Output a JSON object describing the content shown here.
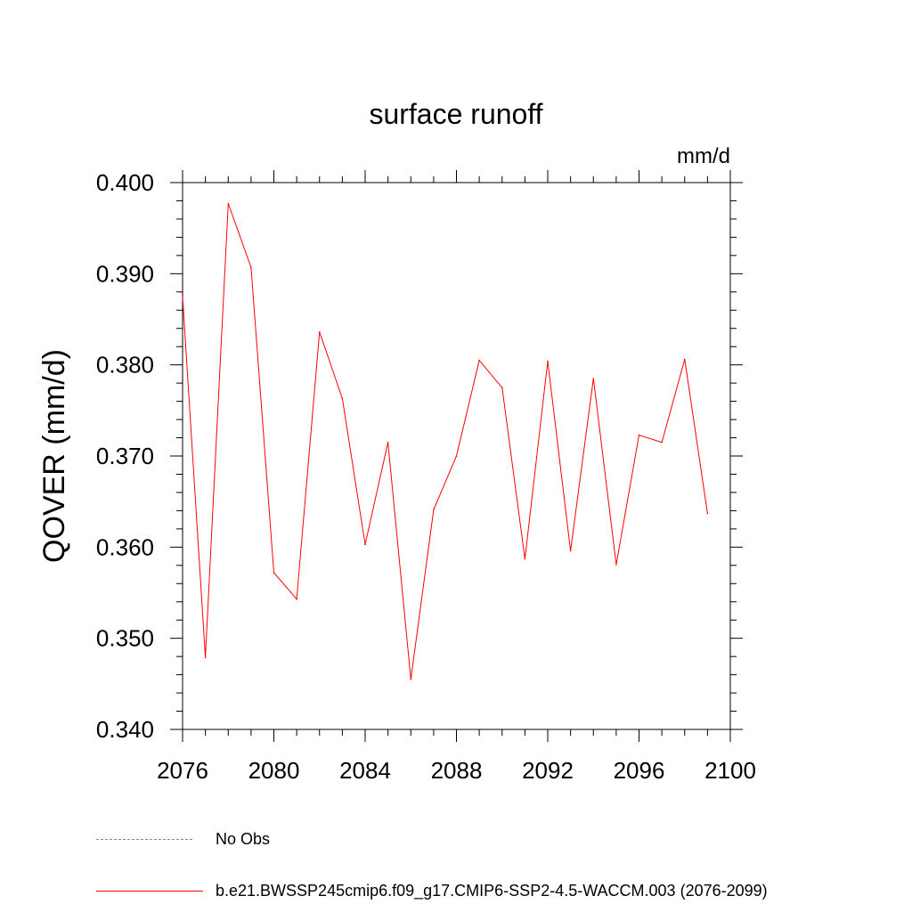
{
  "chart_data": {
    "type": "line",
    "title": "surface runoff",
    "units_label": "mm/d",
    "ylabel": "QOVER  (mm/d)",
    "xlabel": "",
    "xlim": [
      2076,
      2100
    ],
    "ylim": [
      0.34,
      0.4
    ],
    "x_ticks": [
      2076,
      2080,
      2084,
      2088,
      2092,
      2096,
      2100
    ],
    "x_tick_labels": [
      "2076",
      "2080",
      "2084",
      "2088",
      "2092",
      "2096",
      "2100"
    ],
    "y_ticks": [
      0.34,
      0.35,
      0.36,
      0.37,
      0.38,
      0.39,
      0.4
    ],
    "y_tick_labels": [
      "0.340",
      "0.350",
      "0.360",
      "0.370",
      "0.380",
      "0.390",
      "0.400"
    ],
    "grid": false,
    "legend_position": "bottom",
    "series": [
      {
        "name": "b.e21.BWSSP245cmip6.f09_g17.CMIP6-SSP2-4.5-WACCM.003 (2076-2099)",
        "color": "#ff0000",
        "x": [
          2076,
          2077,
          2078,
          2079,
          2080,
          2081,
          2082,
          2083,
          2084,
          2085,
          2086,
          2087,
          2088,
          2089,
          2090,
          2091,
          2092,
          2093,
          2094,
          2095,
          2096,
          2097,
          2098,
          2099
        ],
        "y": [
          0.3875,
          0.3479,
          0.3977,
          0.3907,
          0.3572,
          0.3543,
          0.3836,
          0.3763,
          0.3603,
          0.3715,
          0.3455,
          0.3641,
          0.37,
          0.3805,
          0.3775,
          0.3587,
          0.3804,
          0.3596,
          0.3785,
          0.3581,
          0.3723,
          0.3715,
          0.3806,
          0.3637
        ]
      }
    ],
    "legend": [
      {
        "label": "No Obs",
        "style": "dashed",
        "color": "#8a7fc0"
      },
      {
        "label": "b.e21.BWSSP245cmip6.f09_g17.CMIP6-SSP2-4.5-WACCM.003 (2076-2099)",
        "style": "solid",
        "color": "#ff0000"
      }
    ]
  }
}
